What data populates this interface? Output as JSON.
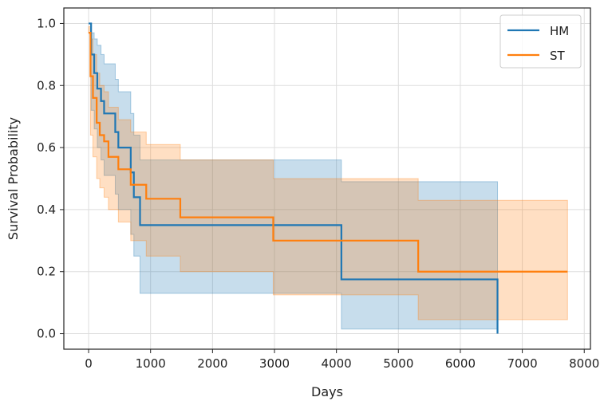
{
  "chart_data": {
    "type": "line",
    "title": "",
    "xlabel": "Days",
    "ylabel": "Survival Probability",
    "xlim": [
      -400,
      8100
    ],
    "ylim": [
      -0.05,
      1.05
    ],
    "xticks": [
      0,
      1000,
      2000,
      3000,
      4000,
      5000,
      6000,
      7000,
      8000
    ],
    "xtick_labels": [
      "0",
      "1000",
      "2000",
      "3000",
      "4000",
      "5000",
      "6000",
      "7000",
      "8000"
    ],
    "yticks": [
      0.0,
      0.2,
      0.4,
      0.6,
      0.8,
      1.0
    ],
    "ytick_labels": [
      "0.0",
      "0.2",
      "0.4",
      "0.6",
      "0.8",
      "1.0"
    ],
    "grid": true,
    "legend_position": "top-right",
    "series": [
      {
        "name": "HM",
        "color": "#1f77b4",
        "step": [
          [
            0,
            1.0
          ],
          [
            40,
            0.9
          ],
          [
            90,
            0.84
          ],
          [
            140,
            0.79
          ],
          [
            200,
            0.75
          ],
          [
            250,
            0.71
          ],
          [
            430,
            0.65
          ],
          [
            480,
            0.6
          ],
          [
            680,
            0.52
          ],
          [
            730,
            0.44
          ],
          [
            830,
            0.35
          ],
          [
            4080,
            0.175
          ],
          [
            6600,
            0.175
          ],
          [
            6600,
            0.0
          ]
        ],
        "ci": [
          [
            0,
            1.0,
            1.0
          ],
          [
            40,
            0.72,
            0.97
          ],
          [
            90,
            0.66,
            0.95
          ],
          [
            140,
            0.6,
            0.93
          ],
          [
            200,
            0.56,
            0.9
          ],
          [
            250,
            0.51,
            0.87
          ],
          [
            430,
            0.45,
            0.82
          ],
          [
            480,
            0.4,
            0.78
          ],
          [
            680,
            0.32,
            0.71
          ],
          [
            730,
            0.25,
            0.64
          ],
          [
            830,
            0.13,
            0.56
          ],
          [
            4080,
            0.015,
            0.49
          ],
          [
            6600,
            0.015,
            0.49
          ]
        ]
      },
      {
        "name": "ST",
        "color": "#ff7f0e",
        "step": [
          [
            0,
            0.97
          ],
          [
            30,
            0.83
          ],
          [
            70,
            0.76
          ],
          [
            130,
            0.68
          ],
          [
            180,
            0.64
          ],
          [
            250,
            0.62
          ],
          [
            320,
            0.57
          ],
          [
            480,
            0.53
          ],
          [
            680,
            0.48
          ],
          [
            930,
            0.435
          ],
          [
            1480,
            0.375
          ],
          [
            2980,
            0.3
          ],
          [
            5320,
            0.2
          ],
          [
            7730,
            0.2
          ]
        ],
        "ci": [
          [
            0,
            0.97,
            0.99
          ],
          [
            30,
            0.64,
            0.95
          ],
          [
            70,
            0.57,
            0.9
          ],
          [
            130,
            0.5,
            0.84
          ],
          [
            180,
            0.47,
            0.8
          ],
          [
            250,
            0.44,
            0.78
          ],
          [
            320,
            0.4,
            0.73
          ],
          [
            480,
            0.36,
            0.69
          ],
          [
            680,
            0.3,
            0.65
          ],
          [
            930,
            0.25,
            0.61
          ],
          [
            1480,
            0.2,
            0.56
          ],
          [
            2980,
            0.125,
            0.5
          ],
          [
            5320,
            0.045,
            0.43
          ],
          [
            7730,
            0.045,
            0.43
          ]
        ]
      }
    ]
  }
}
